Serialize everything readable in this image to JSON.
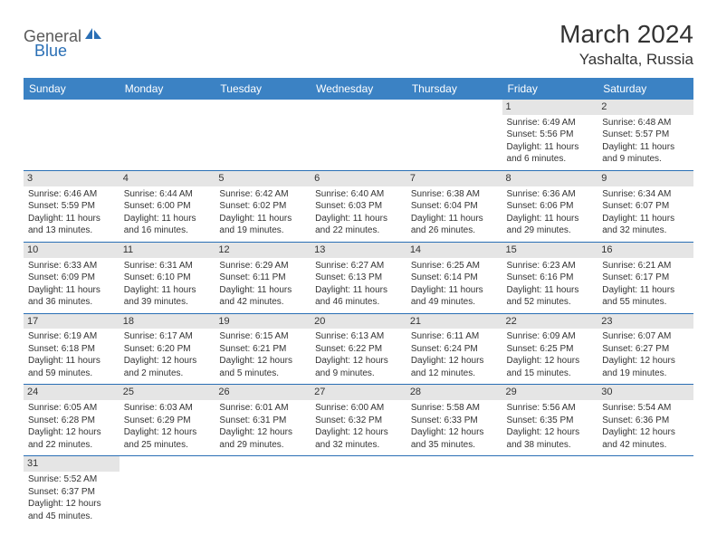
{
  "logo": {
    "part1": "General",
    "part2": "Blue"
  },
  "title": "March 2024",
  "location": "Yashalta, Russia",
  "colors": {
    "header_bg": "#3b82c4",
    "header_text": "#ffffff",
    "daynum_bg": "#e5e5e5",
    "border": "#2a6fb5",
    "logo_gray": "#5a5a5a",
    "logo_blue": "#2a6fb5",
    "text": "#333333"
  },
  "dayHeaders": [
    "Sunday",
    "Monday",
    "Tuesday",
    "Wednesday",
    "Thursday",
    "Friday",
    "Saturday"
  ],
  "weeks": [
    [
      null,
      null,
      null,
      null,
      null,
      {
        "d": "1",
        "sr": "Sunrise: 6:49 AM",
        "ss": "Sunset: 5:56 PM",
        "dl1": "Daylight: 11 hours",
        "dl2": "and 6 minutes."
      },
      {
        "d": "2",
        "sr": "Sunrise: 6:48 AM",
        "ss": "Sunset: 5:57 PM",
        "dl1": "Daylight: 11 hours",
        "dl2": "and 9 minutes."
      }
    ],
    [
      {
        "d": "3",
        "sr": "Sunrise: 6:46 AM",
        "ss": "Sunset: 5:59 PM",
        "dl1": "Daylight: 11 hours",
        "dl2": "and 13 minutes."
      },
      {
        "d": "4",
        "sr": "Sunrise: 6:44 AM",
        "ss": "Sunset: 6:00 PM",
        "dl1": "Daylight: 11 hours",
        "dl2": "and 16 minutes."
      },
      {
        "d": "5",
        "sr": "Sunrise: 6:42 AM",
        "ss": "Sunset: 6:02 PM",
        "dl1": "Daylight: 11 hours",
        "dl2": "and 19 minutes."
      },
      {
        "d": "6",
        "sr": "Sunrise: 6:40 AM",
        "ss": "Sunset: 6:03 PM",
        "dl1": "Daylight: 11 hours",
        "dl2": "and 22 minutes."
      },
      {
        "d": "7",
        "sr": "Sunrise: 6:38 AM",
        "ss": "Sunset: 6:04 PM",
        "dl1": "Daylight: 11 hours",
        "dl2": "and 26 minutes."
      },
      {
        "d": "8",
        "sr": "Sunrise: 6:36 AM",
        "ss": "Sunset: 6:06 PM",
        "dl1": "Daylight: 11 hours",
        "dl2": "and 29 minutes."
      },
      {
        "d": "9",
        "sr": "Sunrise: 6:34 AM",
        "ss": "Sunset: 6:07 PM",
        "dl1": "Daylight: 11 hours",
        "dl2": "and 32 minutes."
      }
    ],
    [
      {
        "d": "10",
        "sr": "Sunrise: 6:33 AM",
        "ss": "Sunset: 6:09 PM",
        "dl1": "Daylight: 11 hours",
        "dl2": "and 36 minutes."
      },
      {
        "d": "11",
        "sr": "Sunrise: 6:31 AM",
        "ss": "Sunset: 6:10 PM",
        "dl1": "Daylight: 11 hours",
        "dl2": "and 39 minutes."
      },
      {
        "d": "12",
        "sr": "Sunrise: 6:29 AM",
        "ss": "Sunset: 6:11 PM",
        "dl1": "Daylight: 11 hours",
        "dl2": "and 42 minutes."
      },
      {
        "d": "13",
        "sr": "Sunrise: 6:27 AM",
        "ss": "Sunset: 6:13 PM",
        "dl1": "Daylight: 11 hours",
        "dl2": "and 46 minutes."
      },
      {
        "d": "14",
        "sr": "Sunrise: 6:25 AM",
        "ss": "Sunset: 6:14 PM",
        "dl1": "Daylight: 11 hours",
        "dl2": "and 49 minutes."
      },
      {
        "d": "15",
        "sr": "Sunrise: 6:23 AM",
        "ss": "Sunset: 6:16 PM",
        "dl1": "Daylight: 11 hours",
        "dl2": "and 52 minutes."
      },
      {
        "d": "16",
        "sr": "Sunrise: 6:21 AM",
        "ss": "Sunset: 6:17 PM",
        "dl1": "Daylight: 11 hours",
        "dl2": "and 55 minutes."
      }
    ],
    [
      {
        "d": "17",
        "sr": "Sunrise: 6:19 AM",
        "ss": "Sunset: 6:18 PM",
        "dl1": "Daylight: 11 hours",
        "dl2": "and 59 minutes."
      },
      {
        "d": "18",
        "sr": "Sunrise: 6:17 AM",
        "ss": "Sunset: 6:20 PM",
        "dl1": "Daylight: 12 hours",
        "dl2": "and 2 minutes."
      },
      {
        "d": "19",
        "sr": "Sunrise: 6:15 AM",
        "ss": "Sunset: 6:21 PM",
        "dl1": "Daylight: 12 hours",
        "dl2": "and 5 minutes."
      },
      {
        "d": "20",
        "sr": "Sunrise: 6:13 AM",
        "ss": "Sunset: 6:22 PM",
        "dl1": "Daylight: 12 hours",
        "dl2": "and 9 minutes."
      },
      {
        "d": "21",
        "sr": "Sunrise: 6:11 AM",
        "ss": "Sunset: 6:24 PM",
        "dl1": "Daylight: 12 hours",
        "dl2": "and 12 minutes."
      },
      {
        "d": "22",
        "sr": "Sunrise: 6:09 AM",
        "ss": "Sunset: 6:25 PM",
        "dl1": "Daylight: 12 hours",
        "dl2": "and 15 minutes."
      },
      {
        "d": "23",
        "sr": "Sunrise: 6:07 AM",
        "ss": "Sunset: 6:27 PM",
        "dl1": "Daylight: 12 hours",
        "dl2": "and 19 minutes."
      }
    ],
    [
      {
        "d": "24",
        "sr": "Sunrise: 6:05 AM",
        "ss": "Sunset: 6:28 PM",
        "dl1": "Daylight: 12 hours",
        "dl2": "and 22 minutes."
      },
      {
        "d": "25",
        "sr": "Sunrise: 6:03 AM",
        "ss": "Sunset: 6:29 PM",
        "dl1": "Daylight: 12 hours",
        "dl2": "and 25 minutes."
      },
      {
        "d": "26",
        "sr": "Sunrise: 6:01 AM",
        "ss": "Sunset: 6:31 PM",
        "dl1": "Daylight: 12 hours",
        "dl2": "and 29 minutes."
      },
      {
        "d": "27",
        "sr": "Sunrise: 6:00 AM",
        "ss": "Sunset: 6:32 PM",
        "dl1": "Daylight: 12 hours",
        "dl2": "and 32 minutes."
      },
      {
        "d": "28",
        "sr": "Sunrise: 5:58 AM",
        "ss": "Sunset: 6:33 PM",
        "dl1": "Daylight: 12 hours",
        "dl2": "and 35 minutes."
      },
      {
        "d": "29",
        "sr": "Sunrise: 5:56 AM",
        "ss": "Sunset: 6:35 PM",
        "dl1": "Daylight: 12 hours",
        "dl2": "and 38 minutes."
      },
      {
        "d": "30",
        "sr": "Sunrise: 5:54 AM",
        "ss": "Sunset: 6:36 PM",
        "dl1": "Daylight: 12 hours",
        "dl2": "and 42 minutes."
      }
    ],
    [
      {
        "d": "31",
        "sr": "Sunrise: 5:52 AM",
        "ss": "Sunset: 6:37 PM",
        "dl1": "Daylight: 12 hours",
        "dl2": "and 45 minutes."
      },
      null,
      null,
      null,
      null,
      null,
      null
    ]
  ]
}
